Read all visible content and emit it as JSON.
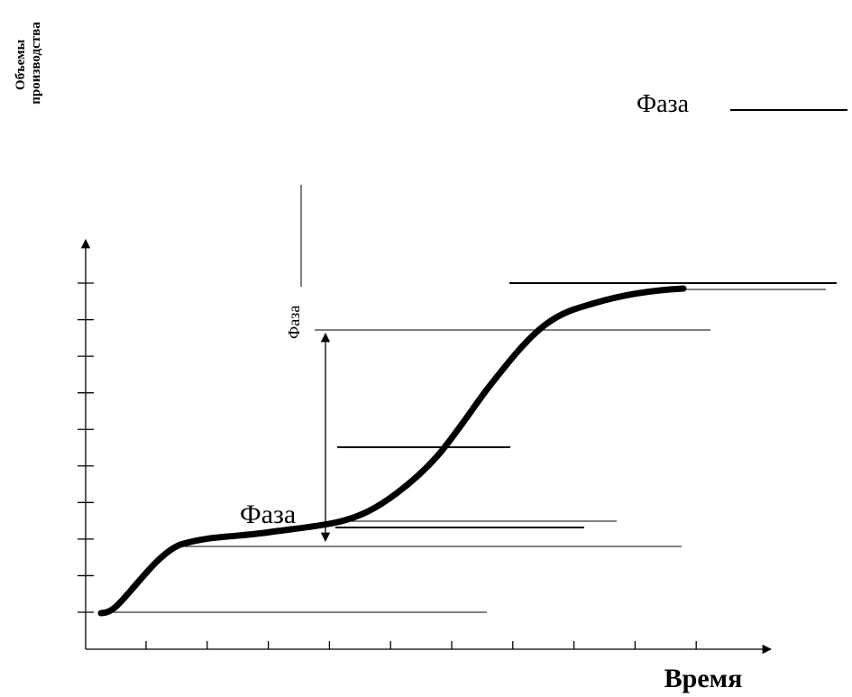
{
  "y_axis_label": [
    "Объемы",
    "производства"
  ],
  "x_axis_label": "Время",
  "phase_labels": {
    "top_right": "Фаза",
    "vertical": "Фаза",
    "bottom": "Фаза"
  },
  "curve": {
    "shape": "S-curve",
    "description_segments": [
      "initial rise",
      "plateau",
      "steep growth",
      "saturation"
    ]
  },
  "y_axis_ticks_count": 10,
  "x_axis_ticks_count": 10
}
